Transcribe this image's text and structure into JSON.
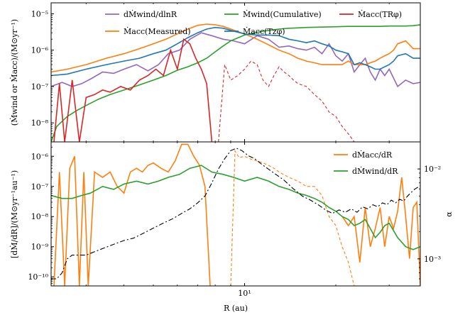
{
  "chart_data": [
    {
      "type": "line",
      "panel": "top",
      "ylabel": "(Ṁwind or Ṁacc)/(M⊙yr⁻¹)",
      "xscale": "log",
      "yscale": "log",
      "xlim": [
        2.3,
        38
      ],
      "ylim": [
        3e-09,
        2e-05
      ],
      "yticks": [
        "10⁻⁸",
        "10⁻⁷",
        "10⁻⁶",
        "10⁻⁵"
      ],
      "legend": {
        "placement": "top",
        "entries": [
          "dṀwind/dlnR",
          "Ṁacc(Measured)",
          "Ṁwind(Cumulative)",
          "Ṁacc(Tzφ)",
          "Ṁacc(TRφ)"
        ]
      },
      "series": [
        {
          "name": "dṀwind/dlnR",
          "color": "#9467bd",
          "style": "solid",
          "x": [
            2.3,
            2.5,
            2.7,
            2.9,
            3.1,
            3.4,
            3.7,
            4.0,
            4.4,
            4.8,
            5.2,
            5.6,
            6.1,
            6.6,
            7.2,
            7.8,
            8.5,
            9.2,
            10,
            11,
            12,
            13,
            14,
            15,
            16,
            17,
            18,
            19,
            20,
            21,
            22,
            23,
            24,
            25,
            26,
            27,
            28,
            29,
            30,
            32,
            34,
            36,
            38
          ],
          "y": [
            1e-07,
            1.3e-07,
            1e-07,
            1.2e-07,
            1.6e-07,
            2.5e-07,
            2.3e-07,
            3e-07,
            4e-07,
            2.7e-07,
            4e-07,
            8e-07,
            1e-06,
            2e-06,
            3e-06,
            2.5e-06,
            2e-06,
            1.8e-06,
            1.5e-06,
            2.5e-06,
            2e-06,
            1.2e-06,
            1.3e-06,
            1.1e-06,
            1e-06,
            1.2e-06,
            8e-07,
            1.5e-06,
            7e-07,
            5e-07,
            8e-07,
            2.5e-07,
            4e-07,
            6e-07,
            2.5e-07,
            1.5e-07,
            3e-07,
            2e-07,
            3e-07,
            1e-07,
            1.5e-07,
            1.2e-07,
            1.3e-07
          ]
        },
        {
          "name": "Ṁacc(Measured)",
          "color": "#ff7f0e",
          "style": "solid",
          "x": [
            2.3,
            2.6,
            3.0,
            3.5,
            4.0,
            4.5,
            5.0,
            5.5,
            6.0,
            6.5,
            7.0,
            7.5,
            8.0,
            8.5,
            9.0,
            10,
            11,
            12,
            13,
            14,
            15,
            16,
            17,
            18,
            19,
            20,
            21,
            22,
            23,
            24,
            25,
            26,
            27,
            28,
            29,
            30,
            31,
            32,
            34,
            36,
            38
          ],
          "y": [
            2.5e-07,
            3e-07,
            4e-07,
            6e-07,
            8e-07,
            1.1e-06,
            1.5e-06,
            2e-06,
            2.8e-06,
            3.8e-06,
            4.8e-06,
            5.2e-06,
            5e-06,
            4.5e-06,
            3.8e-06,
            2.8e-06,
            2e-06,
            1.4e-06,
            1e-06,
            8e-07,
            6e-07,
            5e-07,
            4.5e-07,
            4e-07,
            4e-07,
            4e-07,
            4e-07,
            5e-07,
            4e-07,
            4e-07,
            4e-07,
            4.5e-07,
            5e-07,
            6e-07,
            7e-07,
            8e-07,
            1e-06,
            1.5e-06,
            1.8e-06,
            1.1e-06,
            1.1e-06
          ]
        },
        {
          "name": "Ṁwind(Cumulative)",
          "color": "#2ca02c",
          "style": "solid",
          "x": [
            2.3,
            2.4,
            2.6,
            2.8,
            3.0,
            3.3,
            3.6,
            4.0,
            4.5,
            5.0,
            5.5,
            6.0,
            6.5,
            7.0,
            7.5,
            8.0,
            8.5,
            9.0,
            10,
            11,
            12,
            13,
            14,
            15,
            16,
            18,
            20,
            22,
            24,
            26,
            28,
            30,
            32,
            34,
            36,
            38
          ],
          "y": [
            3e-09,
            8e-09,
            1.5e-08,
            2.2e-08,
            3e-08,
            4.5e-08,
            6e-08,
            8e-08,
            1.1e-07,
            1.5e-07,
            2e-07,
            2.8e-07,
            3.5e-07,
            4.5e-07,
            6e-07,
            9e-07,
            1.3e-06,
            1.8e-06,
            2.6e-06,
            3.1e-06,
            3.5e-06,
            3.8e-06,
            4e-06,
            4.1e-06,
            4.2e-06,
            4.3e-06,
            4.4e-06,
            4.5e-06,
            4.5e-06,
            4.5e-06,
            4.5e-06,
            4.6e-06,
            4.6e-06,
            4.6e-06,
            4.7e-06,
            5e-06
          ]
        },
        {
          "name": "Ṁacc(Tzφ)",
          "color": "#1f77b4",
          "style": "solid",
          "x": [
            2.3,
            2.6,
            3.0,
            3.5,
            4.0,
            4.5,
            5.0,
            5.5,
            6.0,
            6.5,
            7.0,
            7.5,
            8.0,
            8.5,
            9.0,
            10,
            11,
            12,
            13,
            14,
            15,
            16,
            17,
            18,
            19,
            20,
            21,
            22,
            23,
            24,
            25,
            26,
            27,
            28,
            29,
            30,
            31,
            32,
            34,
            36,
            38
          ],
          "y": [
            2e-07,
            2.2e-07,
            3e-07,
            4e-07,
            5e-07,
            6e-07,
            8e-07,
            1e-06,
            1.5e-06,
            2.2e-06,
            3e-06,
            3.8e-06,
            4.2e-06,
            4e-06,
            3.5e-06,
            2.8e-06,
            2.6e-06,
            2.6e-06,
            2.5e-06,
            2e-06,
            1.8e-06,
            1.6e-06,
            1.8e-06,
            1.5e-06,
            1.3e-06,
            1e-06,
            9e-07,
            8e-07,
            4e-07,
            4.5e-07,
            4e-07,
            3.5e-07,
            3e-07,
            3e-07,
            3.5e-07,
            4e-07,
            5e-07,
            7e-07,
            8e-07,
            6e-07,
            6e-07
          ]
        },
        {
          "name": "Ṁacc(TRφ)",
          "color": "#d62728",
          "style": "solid",
          "x": [
            2.35,
            2.45,
            2.55,
            2.7,
            2.85,
            3.0,
            3.2,
            3.4,
            3.6,
            3.9,
            4.2,
            4.5,
            4.8,
            5.1,
            5.4,
            5.7,
            6.0,
            6.3,
            6.6,
            6.9,
            7.2,
            7.5,
            7.8
          ],
          "y": [
            3e-09,
            1.2e-07,
            3e-09,
            1.5e-07,
            3e-09,
            5e-08,
            6e-08,
            8e-08,
            7e-08,
            1e-07,
            8e-08,
            1.5e-07,
            2e-07,
            3e-07,
            2e-07,
            1e-06,
            3e-07,
            2e-06,
            1.5e-06,
            6e-07,
            3e-07,
            1.2e-07,
            3e-09
          ]
        },
        {
          "name": "Ṁacc(TRφ)",
          "color": "#d62728",
          "style": "dashed",
          "x": [
            8.2,
            8.6,
            9.0,
            9.5,
            10,
            10.5,
            11,
            11.5,
            12,
            12.5,
            13,
            13.5,
            14,
            14.5,
            15,
            16,
            17,
            18,
            19,
            20,
            21,
            22,
            23
          ],
          "y": [
            3e-09,
            4e-07,
            1.5e-07,
            2e-07,
            3e-07,
            5e-07,
            4e-07,
            1.5e-07,
            1e-07,
            2e-07,
            3.5e-07,
            2.5e-07,
            2e-07,
            1.5e-07,
            1.2e-07,
            1e-07,
            6e-08,
            4e-08,
            2e-08,
            1.5e-08,
            8e-09,
            5e-09,
            3e-09
          ]
        }
      ]
    },
    {
      "type": "line",
      "panel": "bottom",
      "xlabel": "R (au)",
      "ylabel": "[dṀ/dR]/(M⊙yr⁻¹au⁻¹)",
      "y2label": "α",
      "xscale": "log",
      "yscale": "log",
      "xlim": [
        2.3,
        38
      ],
      "ylim": [
        5e-11,
        3e-06
      ],
      "y2lim": [
        0.0005,
        0.02
      ],
      "xticks": [
        "10¹"
      ],
      "yticks": [
        "10⁻¹⁰",
        "10⁻⁹",
        "10⁻⁸",
        "10⁻⁷",
        "10⁻⁶"
      ],
      "y2ticks": [
        "10⁻³",
        "10⁻²"
      ],
      "legend": {
        "placement": "top-right",
        "entries": [
          "dṀacc/dR",
          "dṀwind/dR"
        ]
      },
      "series": [
        {
          "name": "dṀacc/dR",
          "color": "#ff7f0e",
          "style": "solid",
          "x": [
            2.35,
            2.45,
            2.55,
            2.65,
            2.75,
            2.85,
            2.95,
            3.05,
            3.2,
            3.4,
            3.6,
            3.8,
            4.0,
            4.2,
            4.4,
            4.6,
            4.8,
            5.0,
            5.3,
            5.6,
            5.9,
            6.2,
            6.5,
            6.8,
            7.1,
            7.4,
            7.7
          ],
          "y": [
            5e-11,
            3e-07,
            5e-11,
            4e-07,
            1e-06,
            5e-11,
            3e-07,
            5e-11,
            3e-07,
            2e-07,
            3e-07,
            1e-07,
            6e-08,
            3e-07,
            4e-07,
            3e-07,
            5e-07,
            6e-07,
            4e-07,
            3e-07,
            7e-07,
            2.5e-06,
            2.5e-06,
            1e-06,
            5e-07,
            1e-07,
            5e-11
          ]
        },
        {
          "name": "dṀacc/dR",
          "color": "#ff7f0e",
          "style": "dashed",
          "x": [
            9.0,
            9.3,
            9.6,
            10,
            10.5,
            11,
            11.5,
            12,
            12.5,
            13,
            14,
            15,
            16,
            17,
            18,
            19,
            20,
            21,
            22,
            23
          ],
          "y": [
            5e-11,
            1.5e-06,
            9e-07,
            1e-06,
            8e-07,
            7e-07,
            6e-07,
            5e-07,
            4e-07,
            3e-07,
            2e-07,
            1.5e-07,
            1e-07,
            1e-07,
            5e-08,
            1e-08,
            5e-09,
            1e-09,
            3e-10,
            5e-11
          ]
        },
        {
          "name": "dṀacc/dR",
          "color": "#ff7f0e",
          "style": "solid",
          "x": [
            21,
            22,
            23,
            24,
            25,
            26,
            27,
            28,
            29,
            30,
            31,
            32,
            33,
            34,
            35,
            36,
            37,
            38
          ],
          "y": [
            1e-08,
            5e-09,
            1e-08,
            3e-10,
            2e-08,
            1e-09,
            4e-09,
            2e-08,
            1e-09,
            1e-08,
            4e-09,
            1.5e-08,
            2e-07,
            1e-08,
            4e-10,
            2e-08,
            3e-08,
            5e-11
          ]
        },
        {
          "name": "dṀwind/dR",
          "color": "#2ca02c",
          "style": "solid",
          "x": [
            2.3,
            2.5,
            2.7,
            2.9,
            3.1,
            3.4,
            3.7,
            4.0,
            4.4,
            4.8,
            5.2,
            5.6,
            6.1,
            6.6,
            7.2,
            7.8,
            8.5,
            9.2,
            10,
            11,
            12,
            13,
            14,
            15,
            16,
            17,
            18,
            19,
            20,
            21,
            22,
            23,
            24,
            25,
            26,
            27,
            28,
            29,
            30,
            32,
            34,
            36,
            38
          ],
          "y": [
            5e-08,
            4e-08,
            4e-08,
            5e-08,
            6e-08,
            1e-07,
            8e-08,
            1.2e-07,
            1.5e-07,
            1.2e-07,
            1.5e-07,
            2e-07,
            2.5e-07,
            4e-07,
            5e-07,
            3e-07,
            2.5e-07,
            2e-07,
            1.5e-07,
            2e-07,
            1.5e-07,
            1e-07,
            8e-08,
            6e-08,
            5e-08,
            4e-08,
            3e-08,
            2e-08,
            1.5e-08,
            1e-08,
            8e-09,
            5e-09,
            6e-09,
            8e-09,
            4e-09,
            2e-09,
            3e-09,
            5e-09,
            6e-09,
            2e-09,
            1e-09,
            8e-10,
            1e-09
          ]
        },
        {
          "name": "α",
          "color": "#000000",
          "style": "dashdot",
          "axis": "right",
          "x": [
            2.3,
            2.4,
            2.5,
            2.6,
            2.7,
            2.8,
            3.0,
            3.2,
            3.4,
            3.6,
            3.8,
            4.0,
            4.3,
            4.6,
            5.0,
            5.4,
            5.8,
            6.2,
            6.6,
            7.0,
            7.4,
            7.8,
            8.2,
            8.6,
            9.0,
            9.4,
            9.8,
            10.3,
            10.8,
            11.5,
            12.5,
            13.5,
            14.5,
            15.5,
            16.5,
            17.5,
            18.5,
            19.5,
            20.5,
            21.5,
            22.5,
            23.5,
            24.5,
            25.5,
            26.5,
            27.5,
            28.5,
            29.5,
            30.5,
            31.5,
            32.5,
            33.5,
            34.5,
            35.5,
            36.5,
            38
          ],
          "y": [
            0.0006,
            0.0006,
            0.0007,
            0.001,
            0.0011,
            0.0011,
            0.0011,
            0.0012,
            0.0013,
            0.0014,
            0.0015,
            0.0016,
            0.0017,
            0.0019,
            0.0022,
            0.0025,
            0.0028,
            0.0032,
            0.0036,
            0.0042,
            0.005,
            0.007,
            0.01,
            0.013,
            0.016,
            0.017,
            0.016,
            0.014,
            0.013,
            0.011,
            0.009,
            0.0075,
            0.006,
            0.005,
            0.0045,
            0.004,
            0.0035,
            0.0032,
            0.0035,
            0.0033,
            0.0036,
            0.0033,
            0.0038,
            0.0036,
            0.004,
            0.0038,
            0.0042,
            0.004,
            0.0045,
            0.0042,
            0.0046,
            0.0044,
            0.005,
            0.0055,
            0.006,
            0.0065
          ]
        }
      ]
    }
  ]
}
